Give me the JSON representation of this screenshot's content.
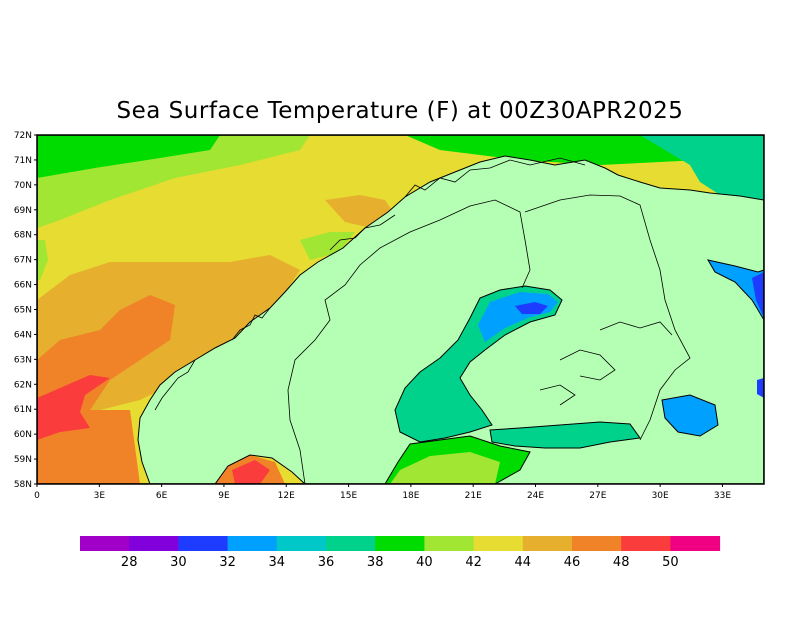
{
  "title": "Sea Surface Temperature (F) at 00Z30APR2025",
  "lat_ticks": [
    "58N",
    "59N",
    "60N",
    "61N",
    "62N",
    "63N",
    "64N",
    "65N",
    "66N",
    "67N",
    "68N",
    "69N",
    "70N",
    "71N",
    "72N"
  ],
  "lon_ticks": [
    "0",
    "3E",
    "6E",
    "9E",
    "12E",
    "15E",
    "18E",
    "21E",
    "24E",
    "27E",
    "30E",
    "33E"
  ],
  "extent": {
    "lon_min": 0,
    "lon_max": 35,
    "lat_min": 58,
    "lat_max": 72
  },
  "colorbar": {
    "colors": [
      "#a000c8",
      "#8200dc",
      "#1e3cff",
      "#00a0ff",
      "#00c8c8",
      "#00d28c",
      "#00dc00",
      "#a0e632",
      "#e6dc32",
      "#e6af2d",
      "#f08228",
      "#fa3c3c",
      "#f00082"
    ],
    "labels": [
      "28",
      "30",
      "32",
      "34",
      "36",
      "38",
      "40",
      "42",
      "44",
      "46",
      "48",
      "50"
    ]
  },
  "colors": {
    "land": "#b4ffb4",
    "coast": "#000000"
  }
}
